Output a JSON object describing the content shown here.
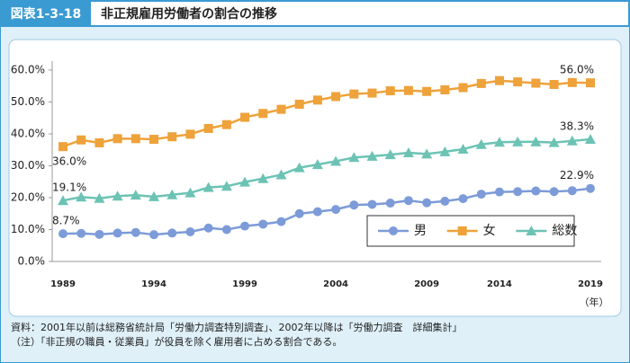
{
  "chart_data": {
    "type": "line",
    "figure_label": "図表1-3-18",
    "title": "非正規雇用労働者の割合の推移",
    "x_unit": "（年）",
    "categories": [
      "1989",
      null,
      null,
      null,
      null,
      "1994",
      null,
      null,
      null,
      null,
      "1999",
      null,
      null,
      null,
      null,
      "2004",
      null,
      null,
      null,
      null,
      "2009",
      null,
      null,
      null,
      "2014",
      null,
      null,
      null,
      null,
      "2019"
    ],
    "series": [
      {
        "name": "男",
        "color": "#7c9bd8",
        "marker": "circle",
        "values": [
          8.7,
          8.8,
          8.5,
          8.9,
          9.1,
          8.4,
          8.9,
          9.3,
          10.5,
          10.0,
          11.1,
          11.7,
          12.5,
          15.0,
          15.6,
          16.3,
          17.7,
          17.9,
          18.3,
          19.1,
          18.4,
          18.9,
          19.7,
          21.1,
          21.8,
          21.9,
          22.1,
          21.9,
          22.2,
          22.9
        ],
        "value_labels": [
          "8.7%",
          null,
          null,
          null,
          null,
          null,
          null,
          null,
          null,
          null,
          null,
          null,
          null,
          null,
          null,
          null,
          null,
          null,
          null,
          null,
          null,
          null,
          null,
          null,
          null,
          null,
          null,
          null,
          null,
          "22.9%"
        ]
      },
      {
        "name": "女",
        "color": "#eea23a",
        "marker": "square",
        "values": [
          36.0,
          38.1,
          37.2,
          38.5,
          38.5,
          38.3,
          39.1,
          39.9,
          41.7,
          42.9,
          45.2,
          46.4,
          47.7,
          49.3,
          50.6,
          51.7,
          52.5,
          52.8,
          53.5,
          53.6,
          53.3,
          53.8,
          54.5,
          55.8,
          56.7,
          56.3,
          55.9,
          55.5,
          56.1,
          56.0
        ],
        "value_labels": [
          "36.0%",
          null,
          null,
          null,
          null,
          null,
          null,
          null,
          null,
          null,
          null,
          null,
          null,
          null,
          null,
          null,
          null,
          null,
          null,
          null,
          null,
          null,
          null,
          null,
          null,
          null,
          null,
          null,
          null,
          "56.0%"
        ]
      },
      {
        "name": "総数",
        "color": "#6cc3b4",
        "marker": "triangle",
        "values": [
          19.1,
          20.2,
          19.8,
          20.5,
          20.8,
          20.3,
          20.9,
          21.5,
          23.2,
          23.6,
          24.9,
          26.0,
          27.2,
          29.4,
          30.4,
          31.4,
          32.6,
          33.0,
          33.5,
          34.1,
          33.7,
          34.4,
          35.2,
          36.7,
          37.4,
          37.5,
          37.5,
          37.3,
          37.8,
          38.3
        ],
        "value_labels": [
          "19.1%",
          null,
          null,
          null,
          null,
          null,
          null,
          null,
          null,
          null,
          null,
          null,
          null,
          null,
          null,
          null,
          null,
          null,
          null,
          null,
          null,
          null,
          null,
          null,
          null,
          null,
          null,
          null,
          null,
          "38.3%"
        ]
      }
    ],
    "ylim": [
      0,
      60
    ],
    "yticks": [
      {
        "value": 0,
        "label": "0.0%"
      },
      {
        "value": 10,
        "label": "10.0%"
      },
      {
        "value": 20,
        "label": "20.0%"
      },
      {
        "value": 30,
        "label": "30.0%"
      },
      {
        "value": 40,
        "label": "40.0%"
      },
      {
        "value": 50,
        "label": "50.0%"
      },
      {
        "value": 60,
        "label": "60.0%"
      }
    ],
    "grid": false,
    "legend": "lower right",
    "notes": [
      "資料：2001年以前は総務省統計局「労働力調査特別調査」、2002年以降は「労働力調査　詳細集計」",
      "（注）「非正規の職員・従業員」が役員を除く雇用者に占める割合である。"
    ]
  }
}
